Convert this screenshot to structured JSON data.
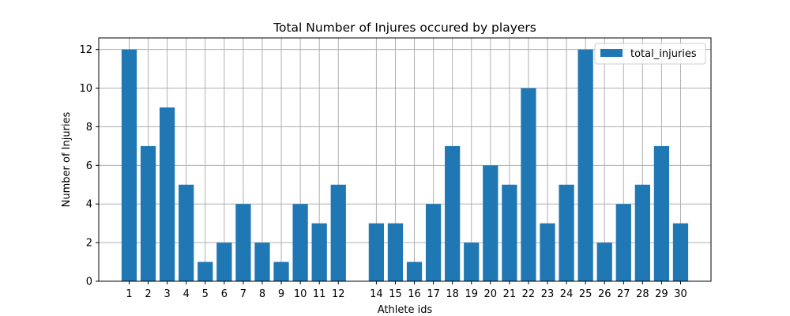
{
  "chart_data": {
    "type": "bar",
    "title": "Total Number of Injures occured by players",
    "xlabel": "Athlete ids",
    "ylabel": "Number of Injuries",
    "x": [
      1,
      2,
      3,
      4,
      5,
      6,
      7,
      8,
      9,
      10,
      11,
      12,
      14,
      15,
      16,
      17,
      18,
      19,
      20,
      21,
      22,
      23,
      24,
      25,
      26,
      27,
      28,
      29,
      30
    ],
    "series": [
      {
        "name": "total_injuries",
        "values": [
          12,
          7,
          9,
          5,
          1,
          2,
          4,
          2,
          1,
          4,
          3,
          5,
          3,
          3,
          1,
          4,
          7,
          2,
          6,
          5,
          10,
          3,
          5,
          12,
          2,
          4,
          5,
          7,
          3
        ]
      }
    ],
    "xlim": [
      -0.6,
      31.6
    ],
    "ylim": [
      0,
      12.6
    ],
    "yticks": [
      0,
      2,
      4,
      6,
      8,
      10,
      12
    ],
    "grid": true,
    "legend": "top-right",
    "bar_color": "#1f77b4",
    "grid_color": "#b0b0b0"
  }
}
